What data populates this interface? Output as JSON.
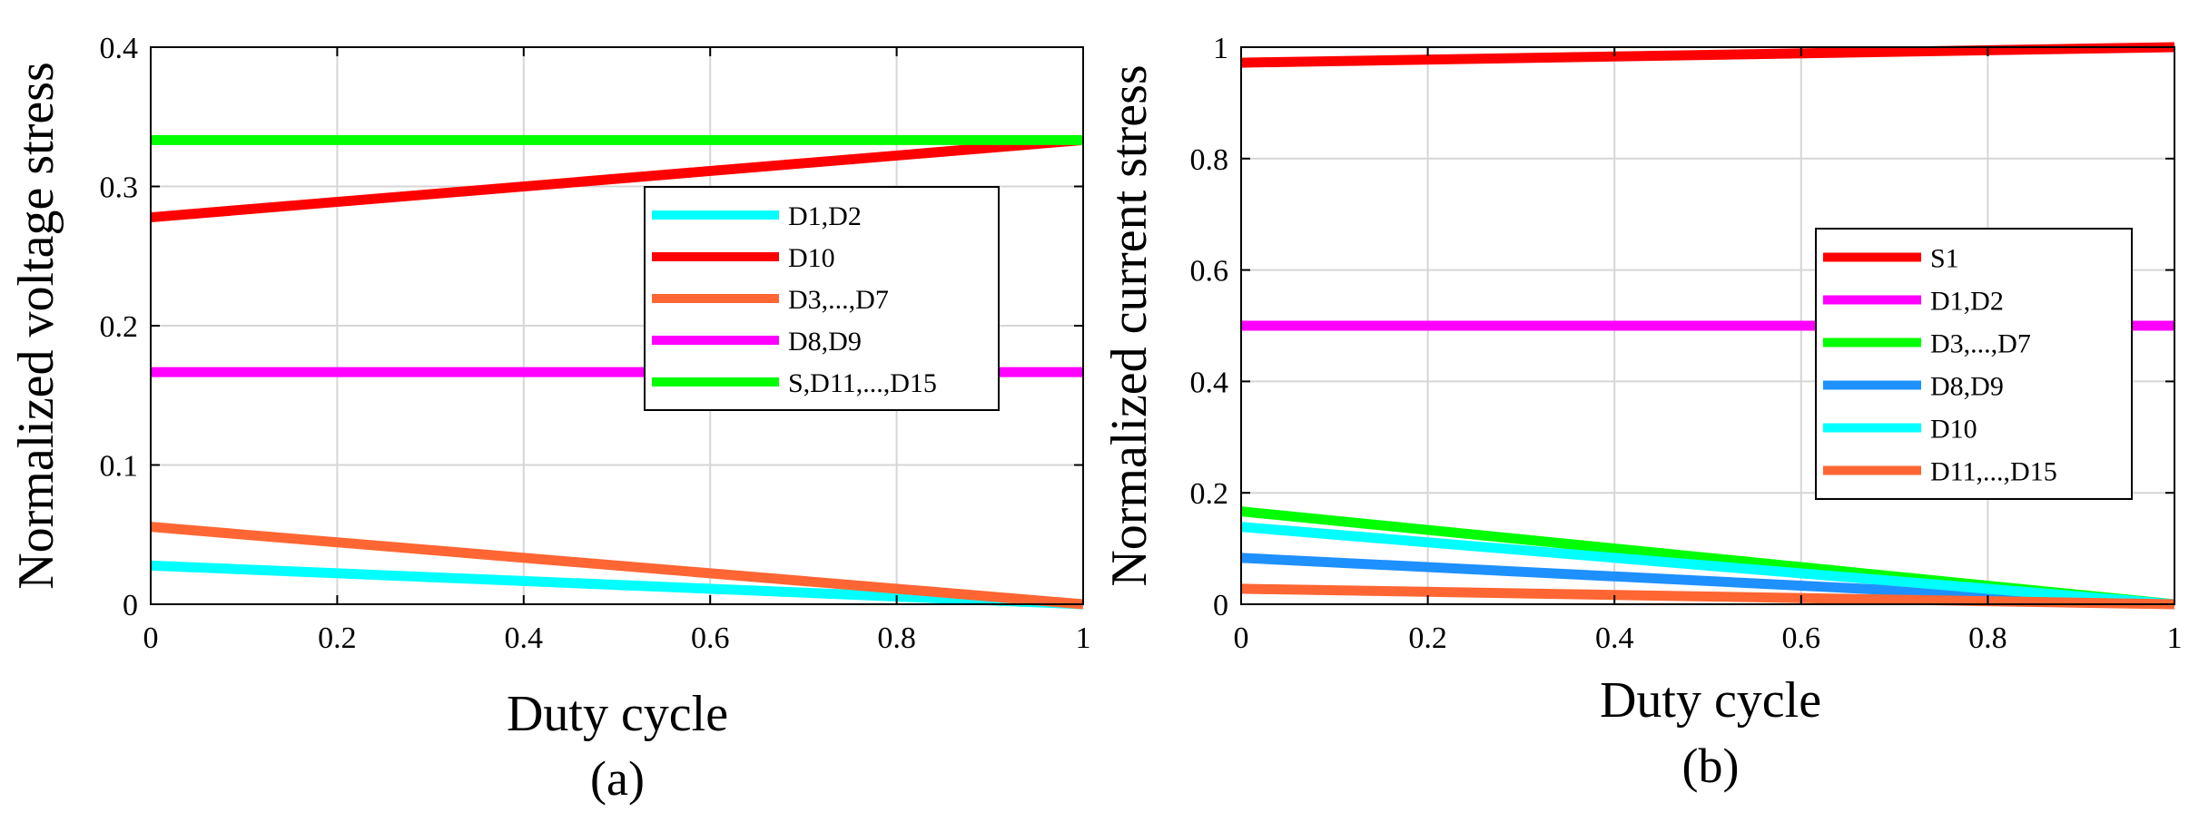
{
  "chart_data": [
    {
      "type": "line",
      "panel_label": "(a)",
      "xlabel": "Duty cycle",
      "ylabel": "Normalized voltage stress",
      "xlim": [
        0,
        1
      ],
      "ylim": [
        0,
        0.4
      ],
      "xticks": [
        "0",
        "0.2",
        "0.4",
        "0.6",
        "0.8",
        "1"
      ],
      "yticks": [
        "0",
        "0.1",
        "0.2",
        "0.3",
        "0.4"
      ],
      "grid": true,
      "legend_position": "center-right",
      "series": [
        {
          "name": "D1,D2",
          "color": "#00ffff",
          "x": [
            0,
            1
          ],
          "y": [
            0.0278,
            0.0
          ]
        },
        {
          "name": "D10",
          "color": "#ff0000",
          "x": [
            0,
            1
          ],
          "y": [
            0.2778,
            0.3333
          ]
        },
        {
          "name": "D3,...,D7",
          "color": "#ff6633",
          "x": [
            0,
            1
          ],
          "y": [
            0.0556,
            0.0
          ]
        },
        {
          "name": "D8,D9",
          "color": "#ff00ff",
          "x": [
            0,
            1
          ],
          "y": [
            0.1667,
            0.1667
          ]
        },
        {
          "name": "S,D11,...,D15",
          "color": "#00ff00",
          "x": [
            0,
            1
          ],
          "y": [
            0.3333,
            0.3333
          ]
        }
      ]
    },
    {
      "type": "line",
      "panel_label": "(b)",
      "xlabel": "Duty cycle",
      "ylabel": "Normalized current stress",
      "xlim": [
        0,
        1
      ],
      "ylim": [
        0,
        1
      ],
      "xticks": [
        "0",
        "0.2",
        "0.4",
        "0.6",
        "0.8",
        "1"
      ],
      "yticks": [
        "0",
        "0.2",
        "0.4",
        "0.6",
        "0.8",
        "1"
      ],
      "grid": true,
      "legend_position": "center-right",
      "series": [
        {
          "name": "S1",
          "color": "#ff0000",
          "x": [
            0,
            1
          ],
          "y": [
            0.9722,
            1.0
          ]
        },
        {
          "name": "D1,D2",
          "color": "#ff00ff",
          "x": [
            0,
            1
          ],
          "y": [
            0.5,
            0.5
          ]
        },
        {
          "name": "D3,...,D7",
          "color": "#00ff00",
          "x": [
            0,
            1
          ],
          "y": [
            0.1667,
            0.0
          ]
        },
        {
          "name": "D8,D9",
          "color": "#1e90ff",
          "x": [
            0,
            1
          ],
          "y": [
            0.0833,
            0.0
          ]
        },
        {
          "name": "D10",
          "color": "#00ffff",
          "x": [
            0,
            1
          ],
          "y": [
            0.1389,
            0.0
          ]
        },
        {
          "name": "D11,...,D15",
          "color": "#ff6633",
          "x": [
            0,
            1
          ],
          "y": [
            0.0278,
            0.0
          ]
        }
      ]
    }
  ]
}
